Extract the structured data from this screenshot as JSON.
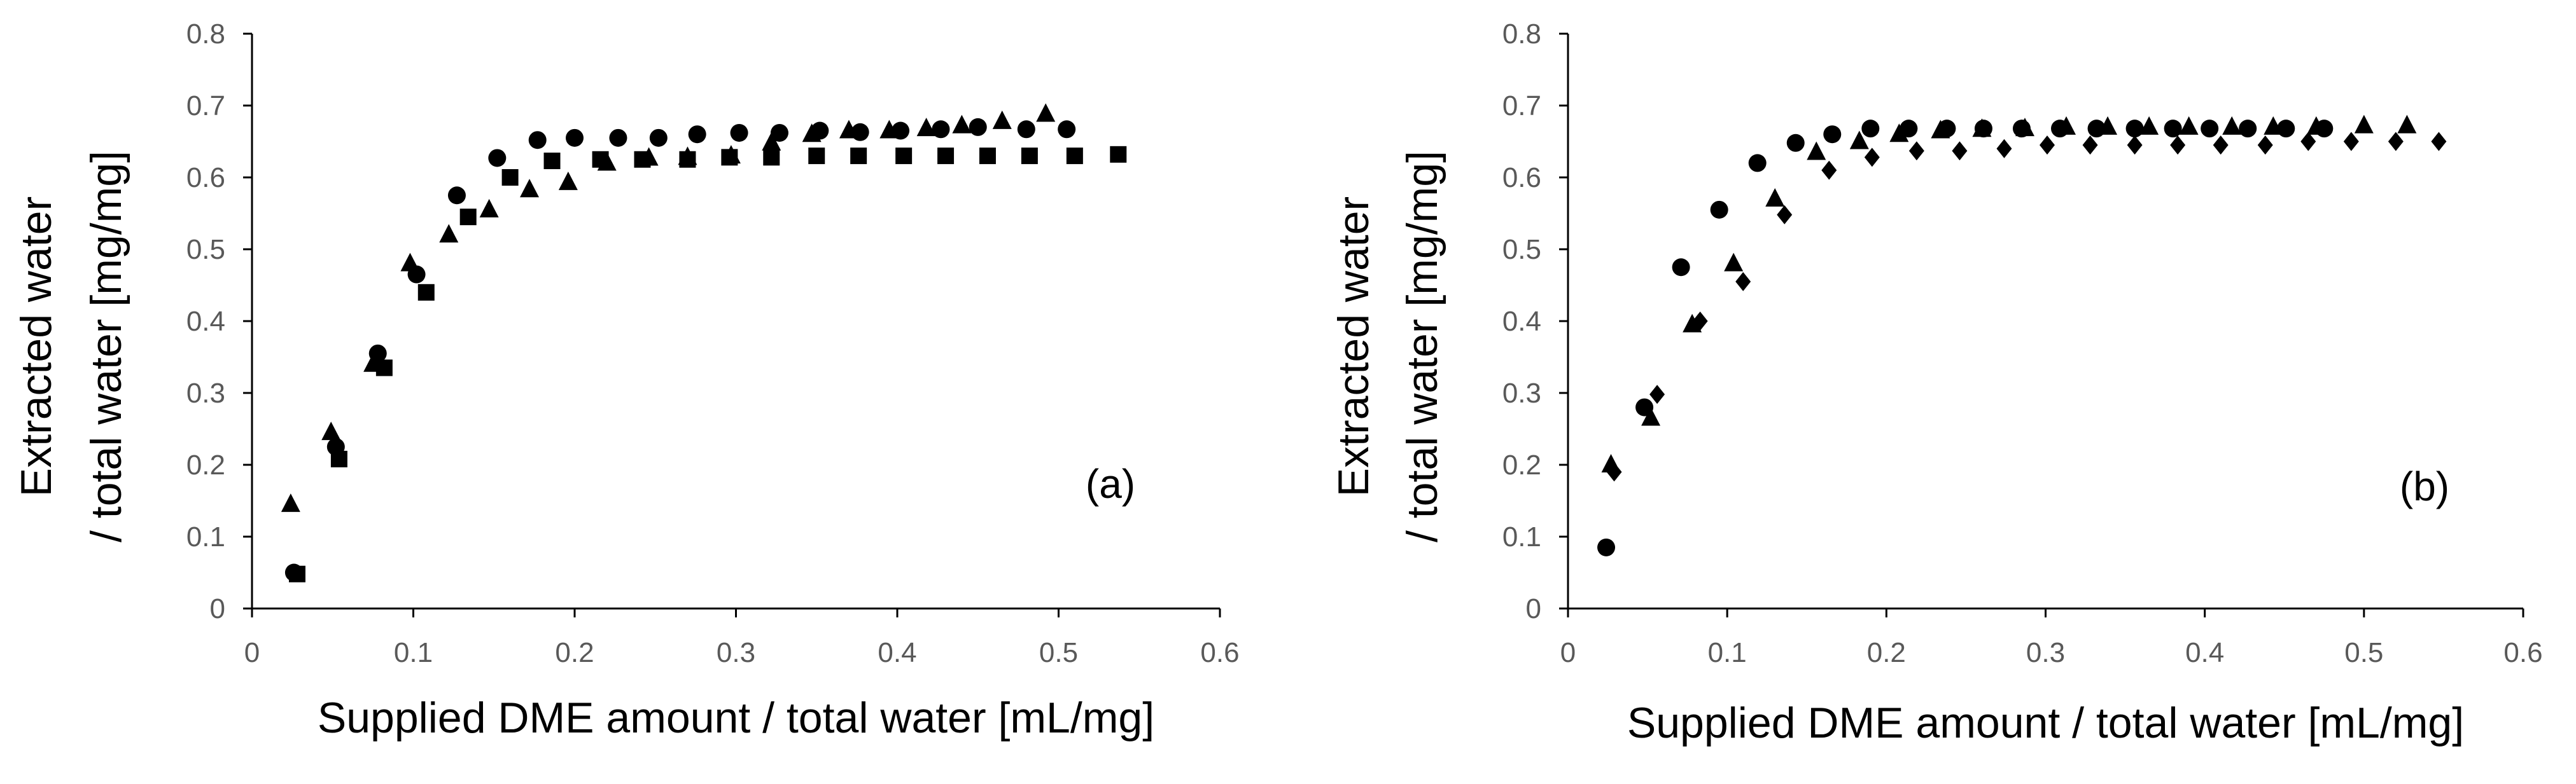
{
  "chart_data": [
    {
      "type": "scatter",
      "panel_label": "(a)",
      "xlabel": "Supplied DME amount / total water [mL/mg]",
      "ylabel": [
        "Extracted water",
        "/ total water [mg/mg]"
      ],
      "xlim": [
        0,
        0.6
      ],
      "ylim": [
        0,
        0.8
      ],
      "xticks": [
        "0",
        "0.1",
        "0.2",
        "0.3",
        "0.4",
        "0.5",
        "0.6"
      ],
      "yticks": [
        "0",
        "0.1",
        "0.2",
        "0.3",
        "0.4",
        "0.5",
        "0.6",
        "0.7",
        "0.8"
      ],
      "series": [
        {
          "name": "circles",
          "marker": "circle",
          "points": [
            [
              0.026,
              0.05
            ],
            [
              0.052,
              0.225
            ],
            [
              0.078,
              0.355
            ],
            [
              0.102,
              0.465
            ],
            [
              0.127,
              0.575
            ],
            [
              0.152,
              0.627
            ],
            [
              0.177,
              0.652
            ],
            [
              0.2,
              0.655
            ],
            [
              0.227,
              0.655
            ],
            [
              0.252,
              0.655
            ],
            [
              0.276,
              0.66
            ],
            [
              0.302,
              0.662
            ],
            [
              0.327,
              0.662
            ],
            [
              0.352,
              0.665
            ],
            [
              0.377,
              0.663
            ],
            [
              0.402,
              0.665
            ],
            [
              0.427,
              0.667
            ],
            [
              0.45,
              0.67
            ],
            [
              0.48,
              0.667
            ],
            [
              0.505,
              0.667
            ]
          ]
        },
        {
          "name": "triangles",
          "marker": "triangle",
          "points": [
            [
              0.024,
              0.145
            ],
            [
              0.049,
              0.245
            ],
            [
              0.075,
              0.34
            ],
            [
              0.098,
              0.48
            ],
            [
              0.122,
              0.52
            ],
            [
              0.147,
              0.555
            ],
            [
              0.172,
              0.583
            ],
            [
              0.196,
              0.593
            ],
            [
              0.22,
              0.62
            ],
            [
              0.246,
              0.627
            ],
            [
              0.27,
              0.628
            ],
            [
              0.297,
              0.63
            ],
            [
              0.322,
              0.648
            ],
            [
              0.347,
              0.66
            ],
            [
              0.37,
              0.665
            ],
            [
              0.395,
              0.665
            ],
            [
              0.418,
              0.668
            ],
            [
              0.44,
              0.672
            ],
            [
              0.465,
              0.678
            ],
            [
              0.492,
              0.688
            ]
          ]
        },
        {
          "name": "squares",
          "marker": "square",
          "points": [
            [
              0.028,
              0.048
            ],
            [
              0.054,
              0.208
            ],
            [
              0.082,
              0.335
            ],
            [
              0.108,
              0.44
            ],
            [
              0.134,
              0.545
            ],
            [
              0.16,
              0.6
            ],
            [
              0.186,
              0.623
            ],
            [
              0.216,
              0.625
            ],
            [
              0.242,
              0.625
            ],
            [
              0.27,
              0.625
            ],
            [
              0.296,
              0.628
            ],
            [
              0.322,
              0.628
            ],
            [
              0.35,
              0.63
            ],
            [
              0.376,
              0.63
            ],
            [
              0.404,
              0.63
            ],
            [
              0.43,
              0.63
            ],
            [
              0.456,
              0.63
            ],
            [
              0.482,
              0.63
            ],
            [
              0.51,
              0.63
            ],
            [
              0.537,
              0.632
            ]
          ]
        }
      ]
    },
    {
      "type": "scatter",
      "panel_label": "(b)",
      "xlabel": "Supplied DME amount / total water [mL/mg]",
      "ylabel": [
        "Extracted water",
        "/ total water [mg/mg]"
      ],
      "xlim": [
        0,
        0.6
      ],
      "ylim": [
        0,
        0.8
      ],
      "xticks": [
        "0",
        "0.1",
        "0.2",
        "0.3",
        "0.4",
        "0.5",
        "0.6"
      ],
      "yticks": [
        "0",
        "0.1",
        "0.2",
        "0.3",
        "0.4",
        "0.5",
        "0.6",
        "0.7",
        "0.8"
      ],
      "series": [
        {
          "name": "circles",
          "marker": "circle",
          "points": [
            [
              0.024,
              0.085
            ],
            [
              0.048,
              0.28
            ],
            [
              0.071,
              0.475
            ],
            [
              0.095,
              0.555
            ],
            [
              0.119,
              0.62
            ],
            [
              0.143,
              0.648
            ],
            [
              0.166,
              0.66
            ],
            [
              0.19,
              0.668
            ],
            [
              0.214,
              0.668
            ],
            [
              0.238,
              0.668
            ],
            [
              0.261,
              0.668
            ],
            [
              0.285,
              0.668
            ],
            [
              0.309,
              0.668
            ],
            [
              0.332,
              0.668
            ],
            [
              0.356,
              0.668
            ],
            [
              0.38,
              0.668
            ],
            [
              0.403,
              0.668
            ],
            [
              0.427,
              0.668
            ],
            [
              0.451,
              0.668
            ],
            [
              0.475,
              0.668
            ]
          ]
        },
        {
          "name": "triangles",
          "marker": "triangle",
          "points": [
            [
              0.027,
              0.2
            ],
            [
              0.052,
              0.265
            ],
            [
              0.078,
              0.395
            ],
            [
              0.104,
              0.48
            ],
            [
              0.13,
              0.57
            ],
            [
              0.156,
              0.635
            ],
            [
              0.183,
              0.65
            ],
            [
              0.208,
              0.66
            ],
            [
              0.234,
              0.665
            ],
            [
              0.26,
              0.667
            ],
            [
              0.287,
              0.668
            ],
            [
              0.313,
              0.67
            ],
            [
              0.339,
              0.67
            ],
            [
              0.365,
              0.67
            ],
            [
              0.39,
              0.67
            ],
            [
              0.417,
              0.67
            ],
            [
              0.443,
              0.67
            ],
            [
              0.47,
              0.67
            ],
            [
              0.5,
              0.672
            ],
            [
              0.527,
              0.672
            ]
          ]
        },
        {
          "name": "diamonds",
          "marker": "diamond",
          "points": [
            [
              0.029,
              0.19
            ],
            [
              0.056,
              0.298
            ],
            [
              0.083,
              0.4
            ],
            [
              0.11,
              0.455
            ],
            [
              0.136,
              0.548
            ],
            [
              0.164,
              0.61
            ],
            [
              0.191,
              0.628
            ],
            [
              0.219,
              0.637
            ],
            [
              0.246,
              0.637
            ],
            [
              0.274,
              0.64
            ],
            [
              0.301,
              0.645
            ],
            [
              0.328,
              0.645
            ],
            [
              0.356,
              0.645
            ],
            [
              0.383,
              0.645
            ],
            [
              0.41,
              0.645
            ],
            [
              0.438,
              0.645
            ],
            [
              0.465,
              0.65
            ],
            [
              0.492,
              0.65
            ],
            [
              0.52,
              0.65
            ],
            [
              0.547,
              0.65
            ]
          ]
        }
      ]
    }
  ]
}
